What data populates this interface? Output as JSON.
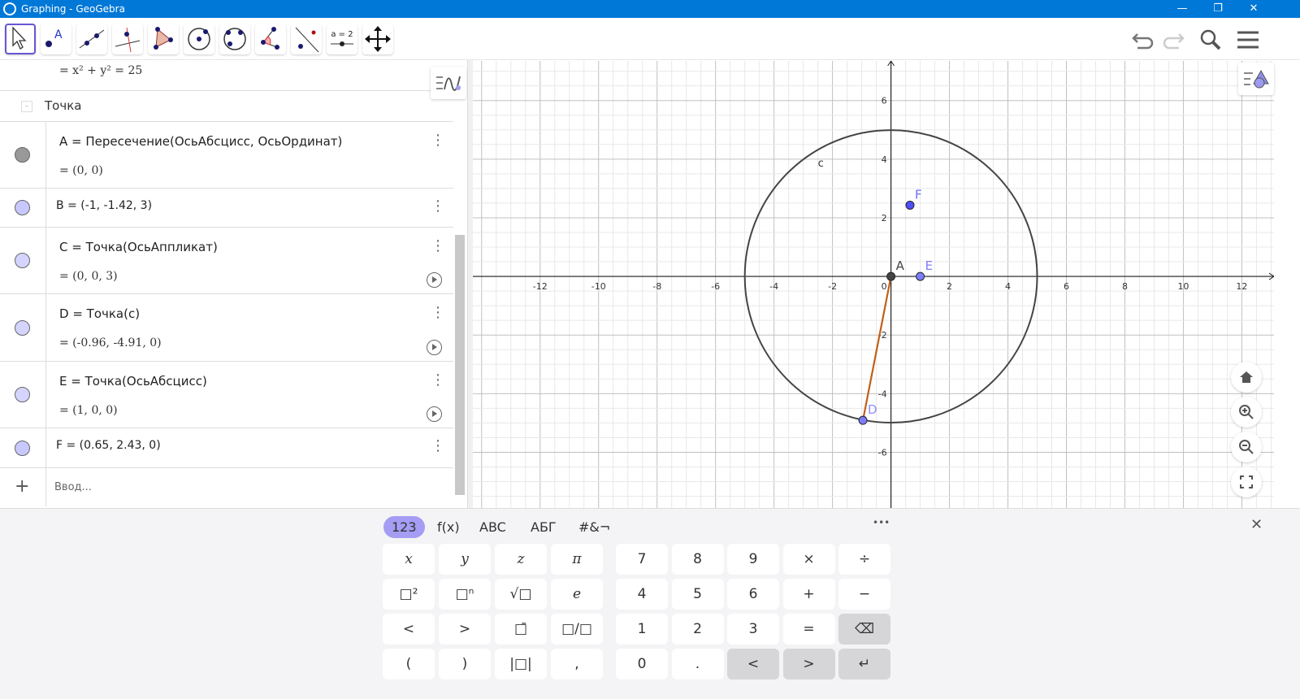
{
  "window": {
    "title": "Graphing - GeoGebra",
    "minimize": "—",
    "maximize": "❐",
    "close": "✕"
  },
  "toolbar": {
    "tools": [
      {
        "name": "move-tool",
        "icon": "arrow-cursor-icon"
      },
      {
        "name": "point-tool",
        "icon": "point-icon",
        "label": "A"
      },
      {
        "name": "line-tool",
        "icon": "line-icon"
      },
      {
        "name": "perpendicular-tool",
        "icon": "perpendicular-icon"
      },
      {
        "name": "polygon-tool",
        "icon": "polygon-icon"
      },
      {
        "name": "circle-center-tool",
        "icon": "circle-center-icon"
      },
      {
        "name": "circle-three-points-tool",
        "icon": "circle-3pts-icon"
      },
      {
        "name": "angle-tool",
        "icon": "angle-icon"
      },
      {
        "name": "reflect-tool",
        "icon": "reflect-icon"
      },
      {
        "name": "slider-tool",
        "icon": "slider-icon",
        "label": "a = 2"
      },
      {
        "name": "move-graphics-tool",
        "icon": "move-arrows-icon"
      }
    ],
    "undo": "undo-icon",
    "redo": "redo-icon",
    "search": "search-icon",
    "menu": "menu-icon"
  },
  "algebra": {
    "partial_row": {
      "value": "= x² + y² = 25"
    },
    "group_header": "Точка",
    "rows": [
      {
        "def": "A = Пересечение(ОсьАбсцисс, ОсьОрдинат)",
        "val": "= (0, 0)",
        "color": "#999999"
      },
      {
        "def": "B = (-1, -1.42, 3)",
        "color": "#c8c8ff"
      },
      {
        "def": "C = Точка(ОсьАппликат)",
        "val": "= (0, 0, 3)",
        "color": "#d4d4ff"
      },
      {
        "def": "D = Точка(c)",
        "val": "= (-0.96, -4.91, 0)",
        "color": "#d4d4ff"
      },
      {
        "def": "E = Точка(ОсьАбсцисс)",
        "val": "= (1, 0, 0)",
        "color": "#d4d4ff"
      },
      {
        "def": "F = (0.65, 2.43, 0)",
        "color": "#c8c8ff"
      }
    ],
    "input_placeholder": "Ввод...",
    "add_icon": "+"
  },
  "graph": {
    "xlim": [
      -14.3,
      13.1
    ],
    "ylim": [
      -7.9,
      7.35
    ],
    "grid": true,
    "x_ticks": [
      -12,
      -10,
      -8,
      -6,
      -4,
      -2,
      2,
      4,
      6,
      8,
      10,
      12
    ],
    "y_ticks": [
      -6,
      -4,
      -2,
      2,
      4,
      6
    ],
    "origin_label": "0",
    "circle": {
      "name": "c",
      "center": [
        0,
        0
      ],
      "radius": 5,
      "color": "#444444"
    },
    "segment": {
      "from": [
        0,
        0
      ],
      "to": [
        -0.96,
        -4.91
      ],
      "color": "#c0601a"
    },
    "points": [
      {
        "name": "A",
        "x": 0,
        "y": 0,
        "color": "#444444",
        "label_color": "#444444"
      },
      {
        "name": "E",
        "x": 1,
        "y": 0,
        "color": "#7d7dff",
        "label_color": "#7d7dff"
      },
      {
        "name": "F",
        "x": 0.65,
        "y": 2.43,
        "color": "#4f4fff",
        "label_color": "#6d6dff"
      },
      {
        "name": "D",
        "x": -0.96,
        "y": -4.91,
        "color": "#7d7dff",
        "label_color": "#8d8dff"
      }
    ],
    "buttons": [
      "home-icon",
      "zoom-in-icon",
      "zoom-out-icon",
      "fullscreen-icon"
    ]
  },
  "keyboard": {
    "tabs": [
      "123",
      "f(x)",
      "ABC",
      "АБГ",
      "#&¬"
    ],
    "more": "•••",
    "close": "✕",
    "left": [
      [
        "x",
        "y",
        "z",
        "π"
      ],
      [
        "□²",
        "□ⁿ",
        "√□",
        "e"
      ],
      [
        "<",
        ">",
        "□̄",
        "□/□"
      ],
      [
        "(",
        ")",
        "|□|",
        ","
      ]
    ],
    "right": [
      [
        "7",
        "8",
        "9",
        "×",
        "÷"
      ],
      [
        "4",
        "5",
        "6",
        "+",
        "−"
      ],
      [
        "1",
        "2",
        "3",
        "=",
        "⌫"
      ],
      [
        "0",
        ".",
        "<",
        ">",
        "↵"
      ]
    ]
  }
}
